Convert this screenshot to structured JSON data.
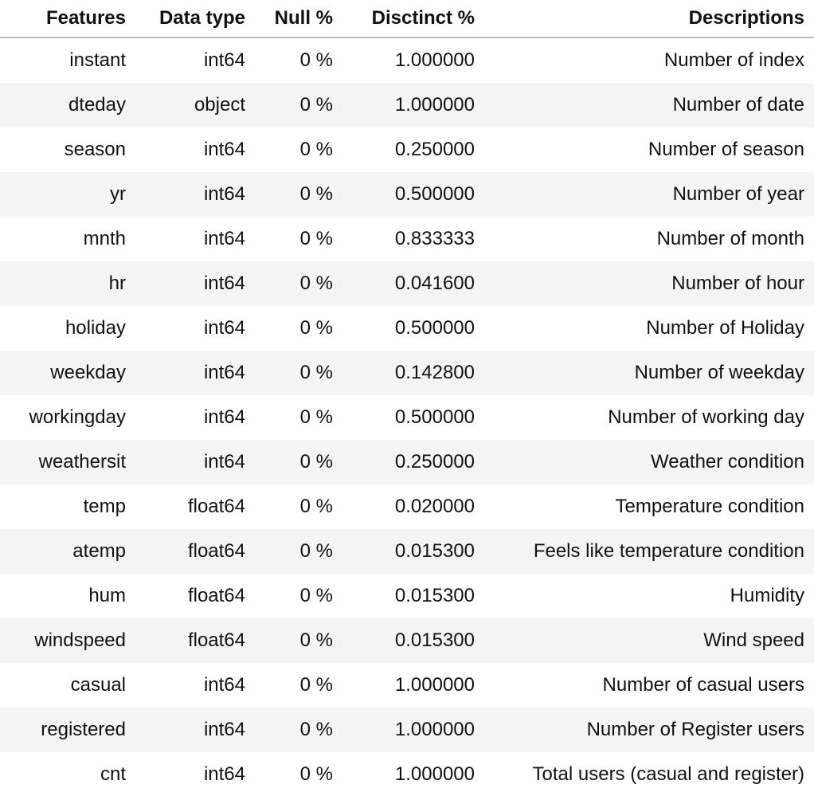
{
  "table": {
    "headers": [
      "Features",
      "Data type",
      "Null %",
      "Disctinct %",
      "Descriptions"
    ],
    "rows": [
      [
        "instant",
        "int64",
        "0 %",
        "1.000000",
        "Number of index"
      ],
      [
        "dteday",
        "object",
        "0 %",
        "1.000000",
        "Number of date"
      ],
      [
        "season",
        "int64",
        "0 %",
        "0.250000",
        "Number of season"
      ],
      [
        "yr",
        "int64",
        "0 %",
        "0.500000",
        "Number of year"
      ],
      [
        "mnth",
        "int64",
        "0 %",
        "0.833333",
        "Number of month"
      ],
      [
        "hr",
        "int64",
        "0 %",
        "0.041600",
        "Number of hour"
      ],
      [
        "holiday",
        "int64",
        "0 %",
        "0.500000",
        "Number of Holiday"
      ],
      [
        "weekday",
        "int64",
        "0 %",
        "0.142800",
        "Number of weekday"
      ],
      [
        "workingday",
        "int64",
        "0 %",
        "0.500000",
        "Number of working day"
      ],
      [
        "weathersit",
        "int64",
        "0 %",
        "0.250000",
        "Weather condition"
      ],
      [
        "temp",
        "float64",
        "0 %",
        "0.020000",
        "Temperature condition"
      ],
      [
        "atemp",
        "float64",
        "0 %",
        "0.015300",
        "Feels like temperature condition"
      ],
      [
        "hum",
        "float64",
        "0 %",
        "0.015300",
        "Humidity"
      ],
      [
        "windspeed",
        "float64",
        "0 %",
        "0.015300",
        "Wind speed"
      ],
      [
        "casual",
        "int64",
        "0 %",
        "1.000000",
        "Number of casual users"
      ],
      [
        "registered",
        "int64",
        "0 %",
        "1.000000",
        "Number of Register users"
      ],
      [
        "cnt",
        "int64",
        "0 %",
        "1.000000",
        "Total users (casual and register)"
      ]
    ]
  }
}
